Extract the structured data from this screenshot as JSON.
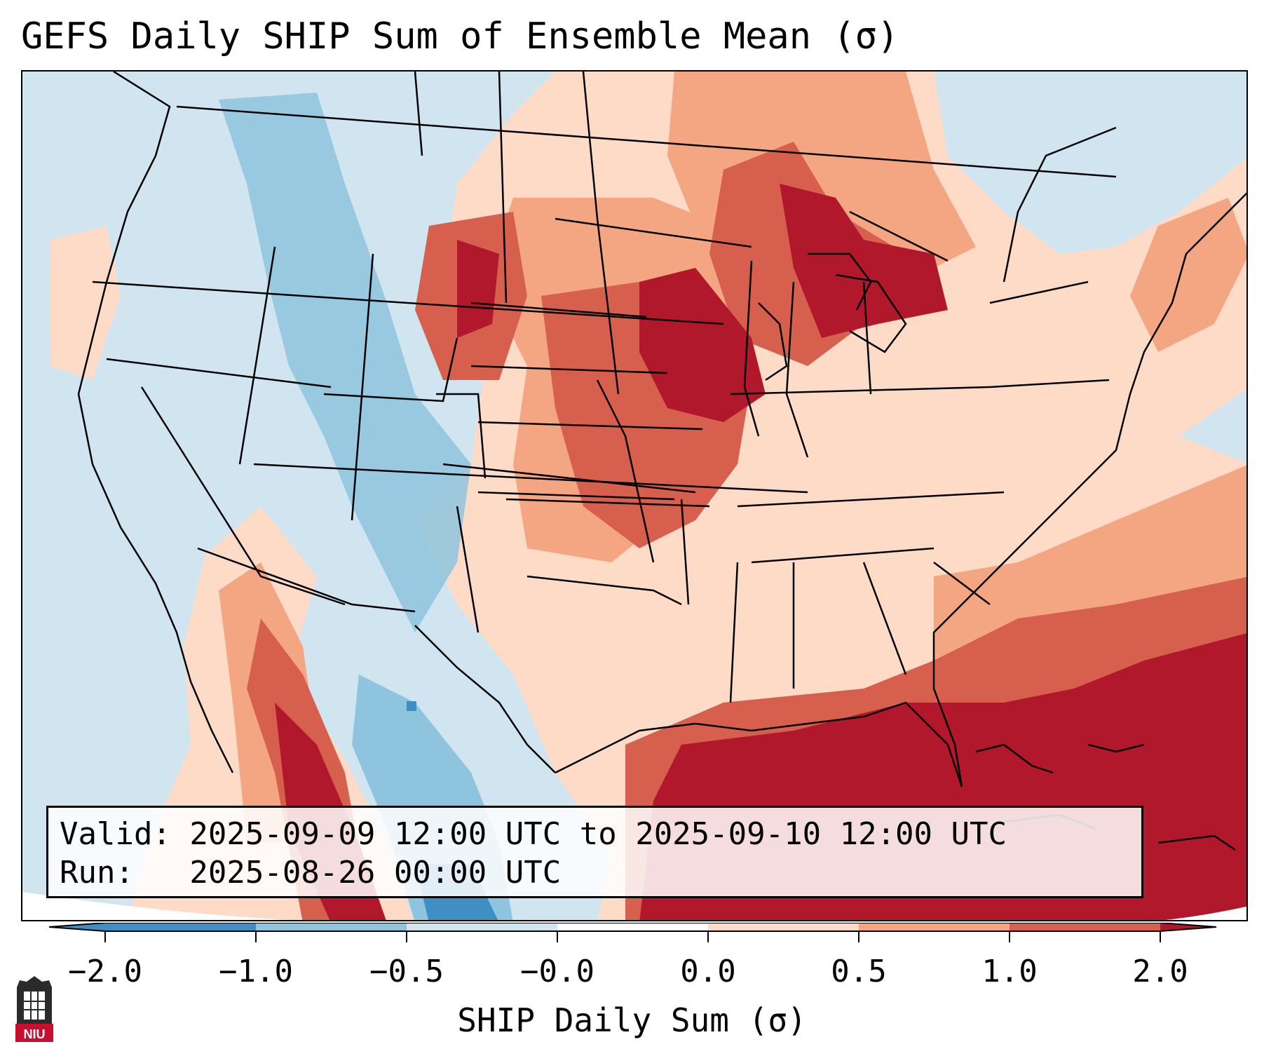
{
  "title": "GEFS Daily SHIP Sum of Ensemble Mean (σ)",
  "valid_line": "Valid: 2025-09-09 12:00 UTC to 2025-09-10 12:00 UTC",
  "run_line": "Run:   2025-08-26 00:00 UTC",
  "colorbar": {
    "label": "SHIP Daily Sum (σ)",
    "ticks": [
      "−2.0",
      "−1.0",
      "−0.5",
      "−0.0",
      "0.0",
      "0.5",
      "1.0",
      "2.0"
    ],
    "colors": [
      "#3f8fc5",
      "#8fc4de",
      "#d1e5f0",
      "#ffffff",
      "#fddbc7",
      "#f4a582",
      "#d6604d",
      "#b2182b"
    ]
  },
  "logo_text": "NIU",
  "colors": {
    "ocean_base": "#d1e5f0",
    "light_red": "#fddbc7",
    "mid_red": "#f4a582",
    "red": "#d6604d",
    "dark_red": "#b2182b",
    "light_blue": "#8fc4de",
    "mid_blue": "#3f8fc5"
  }
}
